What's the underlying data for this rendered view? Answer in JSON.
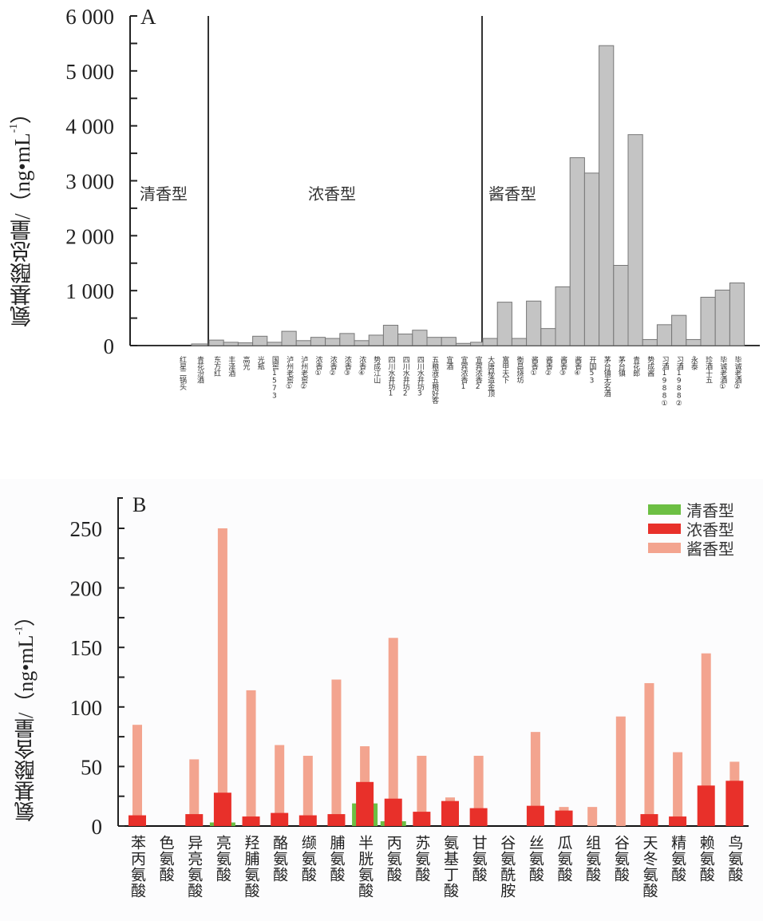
{
  "chart_data": [
    {
      "type": "bar",
      "panel_label": "A",
      "title": "",
      "xlabel": "",
      "ylabel": "氨基酸总量/(ng•mL-1)",
      "ylabel_main": "氨基酸总量/（ng•mL",
      "ylabel_sup": "-1",
      "ylabel_close": "）",
      "ylim": [
        0,
        6000
      ],
      "yticks": [
        0,
        1000,
        2000,
        3000,
        4000,
        5000,
        6000
      ],
      "ytick_labels": [
        "0",
        "1 000",
        "2 000",
        "3 000",
        "4 000",
        "5 000",
        "6 000"
      ],
      "grid": false,
      "bar_color": "#c0c0c0",
      "groups": [
        {
          "name": "清香型",
          "categories": [
            "红星二锅头",
            "青花汾酒"
          ],
          "values": [
            0,
            30
          ]
        },
        {
          "name": "浓香型",
          "categories": [
            "东方红",
            "丰泽酒",
            "高光",
            "光瓶",
            "国窖1573",
            "泸州老窖①",
            "泸州老窖②",
            "浓香①",
            "浓香②",
            "浓香③",
            "浓香④",
            "势成江山",
            "四川水井坊1",
            "四川水井坊2",
            "四川水井坊3",
            "五粮液五粮好客",
            "宜酒",
            "宜宾浓香1",
            "宜宾浓香2"
          ],
          "values": [
            100,
            60,
            50,
            170,
            60,
            260,
            90,
            150,
            130,
            220,
            90,
            190,
            370,
            210,
            280,
            150,
            150,
            40,
            60
          ]
        },
        {
          "name": "酱香型",
          "categories": [
            "大唐秘造金顶",
            "富甲天下",
            "衡昌烧坊",
            "酱香①",
            "酱香②",
            "酱香③",
            "酱香④",
            "开国53",
            "茅台镇无名酒",
            "茅台镇",
            "青花郎",
            "势成酱",
            "习酒1988①",
            "习酒1988②",
            "永泰",
            "珍酒十五",
            "毕诚老酒①",
            "毕诚老酒②"
          ],
          "values": [
            130,
            790,
            130,
            810,
            310,
            1070,
            3420,
            3140,
            5460,
            1460,
            3840,
            110,
            380,
            550,
            110,
            880,
            1010,
            1140
          ]
        }
      ]
    },
    {
      "type": "bar",
      "panel_label": "B",
      "title": "",
      "xlabel": "",
      "ylabel": "氨基酸含量/(ng•mL-1)",
      "ylabel_main": "氨基酸含量/（ng•mL",
      "ylabel_sup": "-1",
      "ylabel_close": "）",
      "ylim": [
        0,
        265
      ],
      "yticks": [
        0,
        50,
        100,
        150,
        200,
        250
      ],
      "ytick_labels": [
        "0",
        "50",
        "100",
        "150",
        "200",
        "250"
      ],
      "grid": false,
      "legend_position": "top-right",
      "categories": [
        "苯丙氨酸",
        "色氨酸",
        "异亮氨酸",
        "亮氨酸",
        "羟脯氨酸",
        "酪氨酸",
        "缬氨酸",
        "脯氨酸",
        "半胱氨酸",
        "丙氨酸",
        "苏氨酸",
        "氨基丁酸",
        "甘氨酸",
        "谷氨酰胺",
        "丝氨酸",
        "瓜氨酸",
        "组氨酸",
        "谷氨酸",
        "天冬氨酸",
        "精氨酸",
        "赖氨酸",
        "鸟氨酸"
      ],
      "series": [
        {
          "name": "清香型",
          "color": "#6cbf43",
          "values": [
            0,
            0,
            0,
            3,
            0,
            0,
            0,
            0,
            19,
            4,
            0,
            0,
            0,
            0,
            0,
            0,
            0,
            0,
            0,
            0,
            0,
            0
          ]
        },
        {
          "name": "浓香型",
          "color": "#e8302a",
          "values": [
            9,
            0,
            10,
            28,
            8,
            11,
            9,
            10,
            37,
            23,
            12,
            21,
            15,
            0,
            17,
            13,
            0,
            0,
            10,
            8,
            34,
            38
          ]
        },
        {
          "name": "酱香型",
          "color": "#f3a48f",
          "values": [
            85,
            0,
            56,
            250,
            114,
            68,
            59,
            123,
            67,
            158,
            59,
            24,
            59,
            0,
            79,
            16,
            16,
            92,
            120,
            62,
            145,
            54
          ]
        }
      ]
    }
  ]
}
